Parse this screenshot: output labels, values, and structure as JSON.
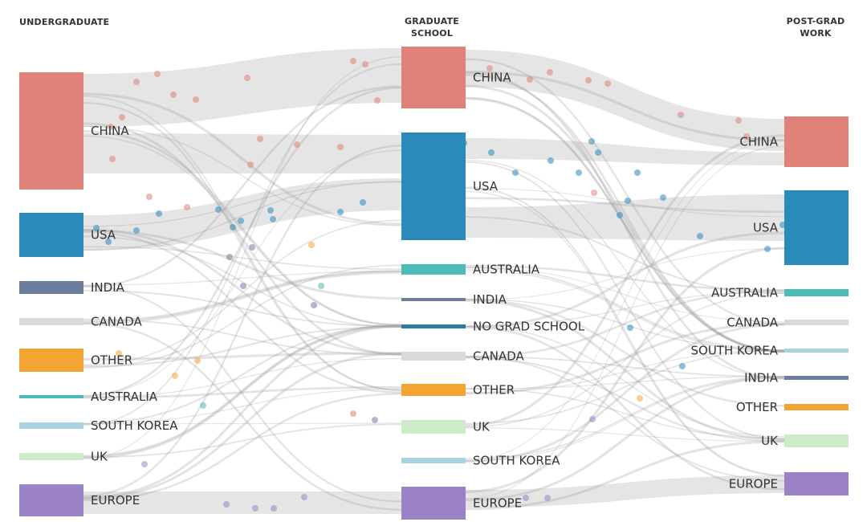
{
  "columns": {
    "undergraduate": {
      "title": "UNDERGRADUATE"
    },
    "graduate": {
      "title_line1": "GRADUATE",
      "title_line2": "SCHOOL"
    },
    "postgrad": {
      "title_line1": "POST-GRAD",
      "title_line2": "WORK"
    }
  },
  "colors": {
    "china": "#e0827a",
    "usa": "#2a8ab9",
    "india": "#6b7e9e",
    "canada": "#d9d9d9",
    "other": "#f2a533",
    "australia": "#4dbcb7",
    "south_korea": "#a8d3df",
    "uk": "#cdebc8",
    "europe": "#9b82c7",
    "no_grad_school": "#2b7aa3",
    "flow": "#cfcfcf"
  },
  "nodes": {
    "undergraduate": [
      {
        "key": "china",
        "label": "CHINA"
      },
      {
        "key": "usa",
        "label": "USA"
      },
      {
        "key": "india",
        "label": "INDIA"
      },
      {
        "key": "canada",
        "label": "CANADA"
      },
      {
        "key": "other",
        "label": "OTHER"
      },
      {
        "key": "australia",
        "label": "AUSTRALIA"
      },
      {
        "key": "south_korea",
        "label": "SOUTH KOREA"
      },
      {
        "key": "uk",
        "label": "UK"
      },
      {
        "key": "europe",
        "label": "EUROPE"
      }
    ],
    "graduate": [
      {
        "key": "china",
        "label": "CHINA"
      },
      {
        "key": "usa",
        "label": "USA"
      },
      {
        "key": "australia",
        "label": "AUSTRALIA"
      },
      {
        "key": "india",
        "label": "INDIA"
      },
      {
        "key": "no_grad_school",
        "label": "NO GRAD SCHOOL"
      },
      {
        "key": "canada",
        "label": "CANADA"
      },
      {
        "key": "other",
        "label": "OTHER"
      },
      {
        "key": "uk",
        "label": "UK"
      },
      {
        "key": "south_korea",
        "label": "SOUTH KOREA"
      },
      {
        "key": "europe",
        "label": "EUROPE"
      }
    ],
    "postgrad": [
      {
        "key": "china",
        "label": "CHINA"
      },
      {
        "key": "usa",
        "label": "USA"
      },
      {
        "key": "australia",
        "label": "AUSTRALIA"
      },
      {
        "key": "canada",
        "label": "CANADA"
      },
      {
        "key": "south_korea",
        "label": "SOUTH KOREA"
      },
      {
        "key": "india",
        "label": "INDIA"
      },
      {
        "key": "other",
        "label": "OTHER"
      },
      {
        "key": "uk",
        "label": "UK"
      },
      {
        "key": "europe",
        "label": "EUROPE"
      }
    ]
  },
  "flows": [
    {
      "from": "undergraduate.china",
      "to": "graduate.china"
    },
    {
      "from": "undergraduate.china",
      "to": "graduate.usa"
    },
    {
      "from": "undergraduate.usa",
      "to": "graduate.usa"
    },
    {
      "from": "undergraduate.europe",
      "to": "graduate.europe"
    },
    {
      "from": "graduate.china",
      "to": "postgrad.china"
    },
    {
      "from": "graduate.usa",
      "to": "postgrad.usa"
    },
    {
      "from": "graduate.usa",
      "to": "postgrad.china"
    },
    {
      "from": "graduate.europe",
      "to": "postgrad.europe"
    }
  ]
}
